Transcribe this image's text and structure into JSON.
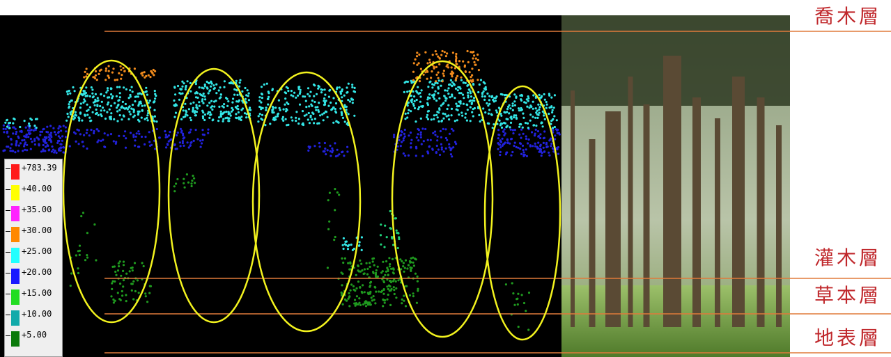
{
  "layers": [
    {
      "name": "喬木層"
    },
    {
      "name": "灌木層"
    },
    {
      "name": "草本層"
    },
    {
      "name": "地表層"
    }
  ],
  "legend": {
    "items": [
      {
        "label": "+783.39",
        "color": "#ff1a1a"
      },
      {
        "label": "+40.00",
        "color": "#ffff00"
      },
      {
        "label": "+35.00",
        "color": "#ff22ff"
      },
      {
        "label": "+30.00",
        "color": "#ff8800"
      },
      {
        "label": "+25.00",
        "color": "#22ffff"
      },
      {
        "label": "+20.00",
        "color": "#1a1aff"
      },
      {
        "label": "+15.00",
        "color": "#22dd22"
      },
      {
        "label": "+10.00",
        "color": "#11aaaa"
      },
      {
        "label": "+5.00",
        "color": "#0a7a0a"
      }
    ]
  },
  "colors": {
    "canopy_top": "#f08a1c",
    "canopy": "#33e6e6",
    "mid": "#2222dd",
    "ground": "#1f9a1f",
    "ellipse": "#f2f21e",
    "layer_line": "#e07a3a"
  }
}
